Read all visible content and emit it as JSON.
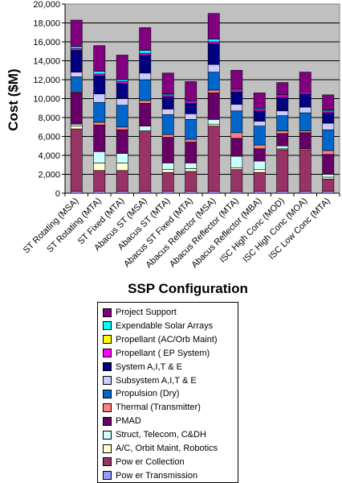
{
  "chart_data": {
    "type": "bar",
    "stacked": true,
    "title": "",
    "xlabel": "SSP Configuration",
    "ylabel": "Cost ($M)",
    "ylim": [
      0,
      20000
    ],
    "yticks": [
      "0",
      "2,000",
      "4,000",
      "6,000",
      "8,000",
      "10,000",
      "12,000",
      "14,000",
      "16,000",
      "18,000",
      "20,000"
    ],
    "grid": true,
    "plot_background": "#c0c0c0",
    "legend_position": "bottom",
    "categories": [
      "ST Rotating (MSA)",
      "ST Rotating (MTA)",
      "ST Fixed (MTA)",
      "Abacus ST (MSA)",
      "Abacus ST (MTA)",
      "Abacus ST Fixed (MTA)",
      "Abacus Reflector (MSA)",
      "Abacus Reflector (MTA)",
      "Abacus Reflector (MBA)",
      "ISC High Conc (MOD)",
      "ISC High Conc (MOA)",
      "ISC Low Conc (MTA)"
    ],
    "series": [
      {
        "name": "Pow er Transmission",
        "color": "#9999ff",
        "values": [
          200,
          200,
          200,
          200,
          200,
          200,
          200,
          200,
          200,
          200,
          200,
          200
        ]
      },
      {
        "name": "Pow er Collection",
        "color": "#993366",
        "values": [
          6600,
          2200,
          2200,
          6300,
          2000,
          2100,
          6900,
          2300,
          2000,
          4400,
          4400,
          1300
        ]
      },
      {
        "name": "A/C, Orbit Maint, Robotics",
        "color": "#ffffcc",
        "values": [
          300,
          800,
          800,
          100,
          300,
          300,
          200,
          200,
          300,
          100,
          100,
          200
        ]
      },
      {
        "name": "Struct, Telecom, C&DH",
        "color": "#ccffff",
        "values": [
          200,
          1200,
          1000,
          500,
          700,
          600,
          500,
          1200,
          900,
          300,
          0,
          300
        ]
      },
      {
        "name": "PMAD",
        "color": "#660066",
        "values": [
          3300,
          2800,
          2500,
          2400,
          2700,
          2200,
          2800,
          1900,
          1300,
          1300,
          1700,
          2100
        ]
      },
      {
        "name": "Thermal (Transmitter)",
        "color": "#ff8080",
        "values": [
          100,
          300,
          300,
          300,
          300,
          300,
          300,
          600,
          400,
          300,
          200,
          400
        ]
      },
      {
        "name": "Propulsion (Dry)",
        "color": "#0066cc",
        "values": [
          1600,
          2100,
          2300,
          2200,
          2100,
          2100,
          1900,
          2300,
          2000,
          1600,
          1900,
          2200
        ]
      },
      {
        "name": "Subsystem A,I,T & E",
        "color": "#ccccff",
        "values": [
          500,
          900,
          700,
          700,
          600,
          600,
          800,
          700,
          500,
          500,
          600,
          700
        ]
      },
      {
        "name": "System A,I,T & E",
        "color": "#000080",
        "values": [
          2300,
          1900,
          1600,
          1900,
          1300,
          1100,
          2200,
          1300,
          1100,
          1400,
          1400,
          1100
        ]
      },
      {
        "name": "Propellant ( EP System)",
        "color": "#ff00ff",
        "values": [
          200,
          200,
          200,
          200,
          200,
          200,
          200,
          200,
          200,
          200,
          200,
          200
        ]
      },
      {
        "name": "Propellant (AC/Orb Maint)",
        "color": "#ffff00",
        "values": [
          0,
          0,
          0,
          0,
          0,
          0,
          0,
          0,
          0,
          0,
          0,
          0
        ]
      },
      {
        "name": "Expendable Solar Arrays",
        "color": "#00ffff",
        "values": [
          200,
          300,
          200,
          300,
          100,
          100,
          300,
          100,
          100,
          100,
          0,
          100
        ]
      },
      {
        "name": "Project Support",
        "color": "#800080",
        "values": [
          2800,
          2700,
          2600,
          2400,
          2200,
          2000,
          2700,
          2000,
          1600,
          1300,
          2100,
          1600
        ]
      }
    ]
  }
}
